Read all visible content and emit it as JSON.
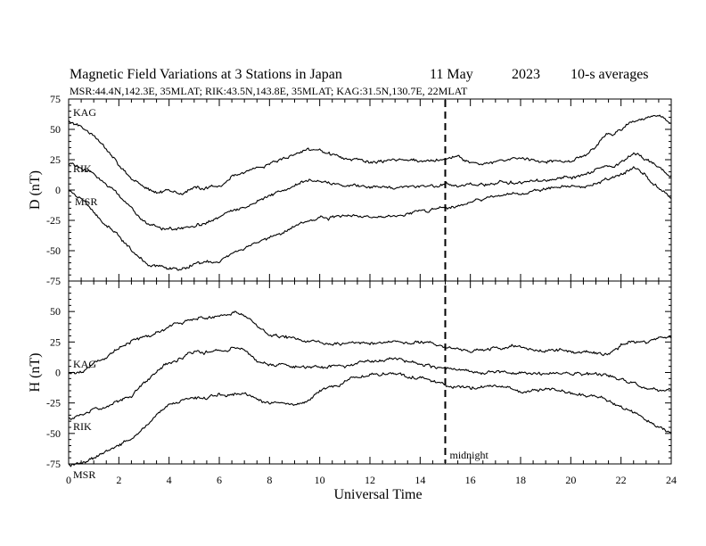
{
  "chart_data": {
    "type": "line",
    "title_parts": [
      "Magnetic Field Variations at 3 Stations in Japan",
      "11 May",
      "2023",
      "10-s averages"
    ],
    "subtitle": "MSR:44.4N,142.3E, 35MLAT;  RIK:43.5N,143.8E, 35MLAT;  KAG:31.5N,130.7E, 22MLAT",
    "xlabel": "Universal Time",
    "xlim": [
      0,
      24
    ],
    "x_ticks": [
      0,
      2,
      4,
      6,
      8,
      10,
      12,
      14,
      16,
      18,
      20,
      22,
      24
    ],
    "annotation": {
      "text": "midnight",
      "x": 15
    },
    "panels": [
      {
        "ylabel": "D (nT)",
        "ylim": [
          -75,
          75
        ],
        "y_ticks": [
          75,
          50,
          25,
          0,
          -25,
          -50,
          -75
        ],
        "series": [
          {
            "name": "KAG",
            "points": [
              [
                0,
                58
              ],
              [
                0.5,
                52
              ],
              [
                1,
                45
              ],
              [
                1.5,
                35
              ],
              [
                2,
                20
              ],
              [
                2.5,
                10
              ],
              [
                3,
                2
              ],
              [
                3.5,
                -2
              ],
              [
                4,
                -1
              ],
              [
                4.5,
                -3
              ],
              [
                5,
                1
              ],
              [
                6,
                4
              ],
              [
                6.5,
                10
              ],
              [
                7,
                14
              ],
              [
                8,
                22
              ],
              [
                9,
                30
              ],
              [
                9.5,
                33
              ],
              [
                10,
                32
              ],
              [
                10.5,
                28
              ],
              [
                11,
                25
              ],
              [
                12,
                23
              ],
              [
                13,
                24
              ],
              [
                14,
                24
              ],
              [
                15,
                25
              ],
              [
                15.5,
                27
              ],
              [
                16,
                22
              ],
              [
                17,
                23
              ],
              [
                18,
                26
              ],
              [
                19,
                24
              ],
              [
                20,
                24
              ],
              [
                20.5,
                28
              ],
              [
                21,
                35
              ],
              [
                21.5,
                45
              ],
              [
                22,
                50
              ],
              [
                22.5,
                56
              ],
              [
                23,
                60
              ],
              [
                23.5,
                62
              ],
              [
                24,
                55
              ]
            ]
          },
          {
            "name": "RIK",
            "points": [
              [
                0,
                22
              ],
              [
                0.5,
                19
              ],
              [
                1,
                13
              ],
              [
                1.5,
                5
              ],
              [
                2,
                -5
              ],
              [
                2.5,
                -15
              ],
              [
                3,
                -25
              ],
              [
                3.5,
                -30
              ],
              [
                4,
                -33
              ],
              [
                4.5,
                -32
              ],
              [
                5,
                -31
              ],
              [
                5.5,
                -27
              ],
              [
                6,
                -24
              ],
              [
                6.5,
                -18
              ],
              [
                7,
                -15
              ],
              [
                8,
                -5
              ],
              [
                9,
                5
              ],
              [
                9.5,
                8
              ],
              [
                10,
                7
              ],
              [
                11,
                4
              ],
              [
                12,
                2
              ],
              [
                13,
                1
              ],
              [
                14,
                3
              ],
              [
                15,
                5
              ],
              [
                16,
                4
              ],
              [
                17,
                5
              ],
              [
                18,
                7
              ],
              [
                19,
                8
              ],
              [
                20,
                10
              ],
              [
                21,
                16
              ],
              [
                22,
                24
              ],
              [
                22.5,
                31
              ],
              [
                23,
                25
              ],
              [
                23.5,
                18
              ],
              [
                24,
                12
              ]
            ]
          },
          {
            "name": "MSR",
            "points": [
              [
                0,
                0
              ],
              [
                0.5,
                -5
              ],
              [
                1,
                -18
              ],
              [
                1.5,
                -28
              ],
              [
                2,
                -37
              ],
              [
                2.5,
                -50
              ],
              [
                3,
                -60
              ],
              [
                3.5,
                -63
              ],
              [
                4,
                -64
              ],
              [
                4.5,
                -65
              ],
              [
                5,
                -62
              ],
              [
                6,
                -58
              ],
              [
                7,
                -48
              ],
              [
                8,
                -38
              ],
              [
                9,
                -30
              ],
              [
                10,
                -23
              ],
              [
                11,
                -22
              ],
              [
                12,
                -22
              ],
              [
                13,
                -21
              ],
              [
                14,
                -18
              ],
              [
                15,
                -13
              ],
              [
                16,
                -10
              ],
              [
                17,
                -5
              ],
              [
                18,
                -3
              ],
              [
                19,
                0
              ],
              [
                20,
                2
              ],
              [
                21,
                5
              ],
              [
                21.5,
                10
              ],
              [
                22,
                14
              ],
              [
                22.5,
                18
              ],
              [
                23,
                12
              ],
              [
                23.5,
                2
              ],
              [
                24,
                -7
              ]
            ]
          }
        ]
      },
      {
        "ylabel": "H (nT)",
        "ylim": [
          -75,
          75
        ],
        "y_ticks": [
          50,
          25,
          0,
          -25,
          -50,
          -75
        ],
        "series": [
          {
            "name": "KAG",
            "points": [
              [
                0,
                0
              ],
              [
                0.5,
                1
              ],
              [
                1,
                8
              ],
              [
                1.5,
                13
              ],
              [
                2,
                20
              ],
              [
                3,
                30
              ],
              [
                4,
                38
              ],
              [
                5,
                44
              ],
              [
                6,
                47
              ],
              [
                6.5,
                49
              ],
              [
                7,
                47
              ],
              [
                7.5,
                40
              ],
              [
                8,
                32
              ],
              [
                9,
                27
              ],
              [
                10,
                25
              ],
              [
                11,
                24
              ],
              [
                12,
                24
              ],
              [
                13,
                26
              ],
              [
                14,
                25
              ],
              [
                15,
                21
              ],
              [
                16,
                18
              ],
              [
                17,
                19
              ],
              [
                18,
                20
              ],
              [
                19,
                18
              ],
              [
                20,
                19
              ],
              [
                20.5,
                17
              ],
              [
                21,
                16
              ],
              [
                21.5,
                16
              ],
              [
                22,
                23
              ],
              [
                22.5,
                26
              ],
              [
                23,
                24
              ],
              [
                23.5,
                27
              ],
              [
                24,
                28
              ]
            ]
          },
          {
            "name": "RIK",
            "points": [
              [
                0,
                -37
              ],
              [
                0.5,
                -35
              ],
              [
                1,
                -30
              ],
              [
                1.5,
                -27
              ],
              [
                2,
                -22
              ],
              [
                2.5,
                -18
              ],
              [
                3,
                -8
              ],
              [
                3.5,
                0
              ],
              [
                4,
                8
              ],
              [
                4.5,
                12
              ],
              [
                5,
                16
              ],
              [
                6,
                18
              ],
              [
                6.5,
                20
              ],
              [
                7,
                17
              ],
              [
                7.5,
                10
              ],
              [
                8,
                7
              ],
              [
                9,
                5
              ],
              [
                10,
                4
              ],
              [
                11,
                5
              ],
              [
                12,
                10
              ],
              [
                13,
                11
              ],
              [
                14,
                8
              ],
              [
                15,
                3
              ],
              [
                16,
                1
              ],
              [
                17,
                0
              ],
              [
                18,
                0
              ],
              [
                19,
                -1
              ],
              [
                20,
                0
              ],
              [
                21,
                -2
              ],
              [
                22,
                -5
              ],
              [
                23,
                -12
              ],
              [
                24,
                -14
              ]
            ]
          },
          {
            "name": "MSR",
            "points": [
              [
                0,
                -75
              ],
              [
                0.5,
                -73
              ],
              [
                1,
                -70
              ],
              [
                1.5,
                -65
              ],
              [
                2,
                -60
              ],
              [
                2.5,
                -55
              ],
              [
                3,
                -45
              ],
              [
                3.5,
                -35
              ],
              [
                4,
                -27
              ],
              [
                4.5,
                -22
              ],
              [
                5,
                -22
              ],
              [
                6,
                -18
              ],
              [
                7,
                -16
              ],
              [
                7.5,
                -22
              ],
              [
                8,
                -25
              ],
              [
                9,
                -26
              ],
              [
                9.5,
                -24
              ],
              [
                10,
                -15
              ],
              [
                11,
                -8
              ],
              [
                12,
                -2
              ],
              [
                13,
                -1
              ],
              [
                14,
                -4
              ],
              [
                15,
                -10
              ],
              [
                16,
                -13
              ],
              [
                17,
                -11
              ],
              [
                18,
                -15
              ],
              [
                19,
                -13
              ],
              [
                20,
                -18
              ],
              [
                21,
                -20
              ],
              [
                22,
                -28
              ],
              [
                22.5,
                -32
              ],
              [
                23,
                -40
              ],
              [
                23.5,
                -45
              ],
              [
                24,
                -50
              ]
            ]
          }
        ]
      }
    ]
  }
}
